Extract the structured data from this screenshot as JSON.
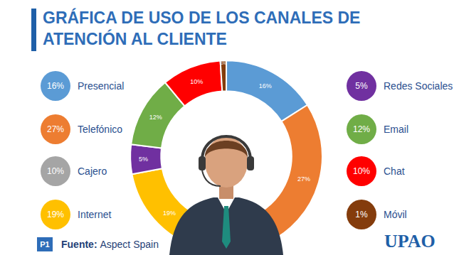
{
  "chart_data": {
    "type": "pie",
    "title": "GRÁFICA DE USO DE LOS CANALES DE ATENCIÓN AL CLIENTE",
    "categories": [
      "Presencial",
      "Telefónico",
      "Cajero",
      "Internet",
      "Redes Sociales",
      "Email",
      "Chat",
      "Móvil"
    ],
    "values": [
      16,
      27,
      10,
      19,
      5,
      12,
      10,
      1
    ],
    "value_labels": [
      "16%",
      "27%",
      "10%",
      "19%",
      "5%",
      "12%",
      "10%",
      "1%"
    ],
    "colors": [
      "#5B9BD5",
      "#ED7D31",
      "#A5A5A5",
      "#FFC000",
      "#7030A0",
      "#70AD47",
      "#FF0000",
      "#843C0C"
    ],
    "data_labels": true
  },
  "source": {
    "label": "Fuente:",
    "text": "Aspect Spain"
  },
  "badge": "P1",
  "logo": "UPAO"
}
